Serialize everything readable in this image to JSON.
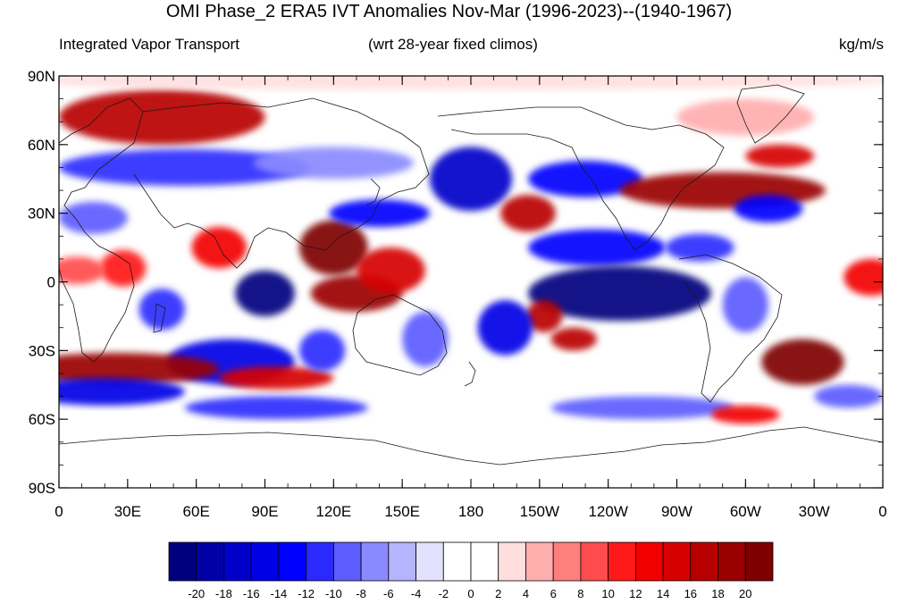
{
  "title": "OMI Phase_2 ERA5 IVT Anomalies Nov-Mar (1996-2023)--(1940-1967)",
  "left_subtitle": "Integrated Vapor Transport",
  "center_subtitle": "(wrt 28-year fixed climos)",
  "right_subtitle": "kg/m/s",
  "lat_labels": [
    "90N",
    "60N",
    "30N",
    "0",
    "30S",
    "60S",
    "90S"
  ],
  "lon_labels": [
    "0",
    "30E",
    "60E",
    "90E",
    "120E",
    "150E",
    "180",
    "150W",
    "120W",
    "90W",
    "60W",
    "30W",
    "0"
  ],
  "colorbar": {
    "colors": [
      "#00007e",
      "#0000a6",
      "#0000c9",
      "#0000e6",
      "#0000ff",
      "#2a2aff",
      "#5c5cff",
      "#8a8aff",
      "#b4b4ff",
      "#e2e2ff",
      "#ffffff",
      "#ffffff",
      "#ffdede",
      "#ffaeae",
      "#ff7e7e",
      "#ff4c4c",
      "#ff1a1a",
      "#f20000",
      "#d60000",
      "#b80000",
      "#9a0000",
      "#7e0000"
    ],
    "labels": [
      "-20",
      "-18",
      "-16",
      "-14",
      "-12",
      "-10",
      "-8",
      "-6",
      "-4",
      "-2",
      "0",
      "2",
      "4",
      "6",
      "8",
      "10",
      "12",
      "14",
      "16",
      "18",
      "20"
    ]
  },
  "map_data": {
    "projection": "cylindrical-equidistant",
    "lon_range": [
      0,
      360
    ],
    "lat_range": [
      -90,
      90
    ],
    "field": "IVT anomaly",
    "units": "kg/m/s",
    "anomaly_blobs": [
      {
        "lon": 45,
        "lat": 72,
        "w": 45,
        "h": 12,
        "v": 16
      },
      {
        "lon": 170,
        "lat": 88,
        "w": 200,
        "h": 4,
        "v": 2
      },
      {
        "lon": 55,
        "lat": 50,
        "w": 55,
        "h": 8,
        "v": -12
      },
      {
        "lon": 120,
        "lat": 52,
        "w": 35,
        "h": 7,
        "v": -8
      },
      {
        "lon": 15,
        "lat": 28,
        "w": 15,
        "h": 7,
        "v": -10
      },
      {
        "lon": 28,
        "lat": 6,
        "w": 10,
        "h": 8,
        "v": 10
      },
      {
        "lon": 8,
        "lat": 5,
        "w": 12,
        "h": 6,
        "v": 8
      },
      {
        "lon": 70,
        "lat": 15,
        "w": 12,
        "h": 9,
        "v": 12
      },
      {
        "lon": 90,
        "lat": -5,
        "w": 13,
        "h": 10,
        "v": -22
      },
      {
        "lon": 75,
        "lat": -35,
        "w": 28,
        "h": 10,
        "v": -16
      },
      {
        "lon": 45,
        "lat": -12,
        "w": 10,
        "h": 9,
        "v": -12
      },
      {
        "lon": 25,
        "lat": -38,
        "w": 45,
        "h": 7,
        "v": 18
      },
      {
        "lon": 20,
        "lat": -48,
        "w": 35,
        "h": 6,
        "v": -16
      },
      {
        "lon": 95,
        "lat": -55,
        "w": 40,
        "h": 5,
        "v": -12
      },
      {
        "lon": 95,
        "lat": -42,
        "w": 25,
        "h": 5,
        "v": 14
      },
      {
        "lon": 120,
        "lat": 15,
        "w": 15,
        "h": 12,
        "v": 20
      },
      {
        "lon": 130,
        "lat": -5,
        "w": 20,
        "h": 8,
        "v": 18
      },
      {
        "lon": 145,
        "lat": 5,
        "w": 15,
        "h": 10,
        "v": 14
      },
      {
        "lon": 140,
        "lat": 30,
        "w": 22,
        "h": 6,
        "v": -14
      },
      {
        "lon": 115,
        "lat": -30,
        "w": 10,
        "h": 9,
        "v": -12
      },
      {
        "lon": 160,
        "lat": -25,
        "w": 10,
        "h": 12,
        "v": -10
      },
      {
        "lon": 180,
        "lat": 45,
        "w": 18,
        "h": 14,
        "v": -18
      },
      {
        "lon": 205,
        "lat": 30,
        "w": 12,
        "h": 8,
        "v": 16
      },
      {
        "lon": 230,
        "lat": 45,
        "w": 25,
        "h": 8,
        "v": -14
      },
      {
        "lon": 235,
        "lat": 15,
        "w": 30,
        "h": 8,
        "v": -14
      },
      {
        "lon": 245,
        "lat": -5,
        "w": 40,
        "h": 12,
        "v": -22
      },
      {
        "lon": 212,
        "lat": -15,
        "w": 8,
        "h": 7,
        "v": 16
      },
      {
        "lon": 195,
        "lat": -20,
        "w": 12,
        "h": 12,
        "v": -16
      },
      {
        "lon": 225,
        "lat": -25,
        "w": 10,
        "h": 5,
        "v": 16
      },
      {
        "lon": 255,
        "lat": -55,
        "w": 40,
        "h": 5,
        "v": -10
      },
      {
        "lon": 290,
        "lat": 40,
        "w": 45,
        "h": 8,
        "v": 18
      },
      {
        "lon": 315,
        "lat": 55,
        "w": 15,
        "h": 5,
        "v": 14
      },
      {
        "lon": 310,
        "lat": 32,
        "w": 15,
        "h": 6,
        "v": -14
      },
      {
        "lon": 280,
        "lat": 15,
        "w": 15,
        "h": 6,
        "v": -12
      },
      {
        "lon": 300,
        "lat": 72,
        "w": 30,
        "h": 8,
        "v": 4
      },
      {
        "lon": 325,
        "lat": -35,
        "w": 18,
        "h": 10,
        "v": 20
      },
      {
        "lon": 300,
        "lat": -10,
        "w": 10,
        "h": 12,
        "v": -10
      },
      {
        "lon": 355,
        "lat": 2,
        "w": 12,
        "h": 8,
        "v": 12
      },
      {
        "lon": 345,
        "lat": -50,
        "w": 15,
        "h": 5,
        "v": -10
      },
      {
        "lon": 300,
        "lat": -58,
        "w": 15,
        "h": 4,
        "v": 12
      }
    ]
  }
}
